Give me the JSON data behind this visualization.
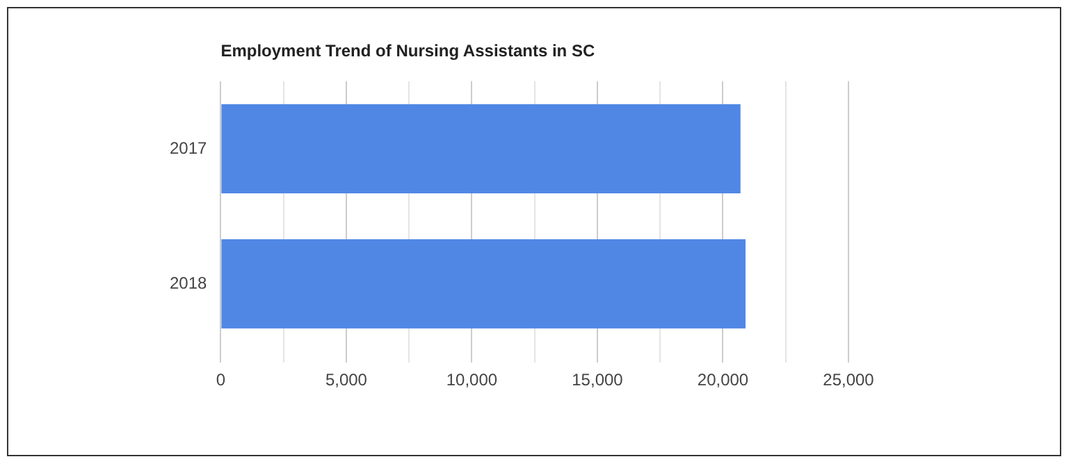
{
  "chart_data": {
    "type": "bar",
    "orientation": "horizontal",
    "title": "Employment Trend of Nursing Assistants in SC",
    "categories": [
      "2017",
      "2018"
    ],
    "values": [
      20700,
      20900
    ],
    "color": "#5087e5",
    "xlim": [
      0,
      25000
    ],
    "xticks": [
      0,
      {
        "value": 2500,
        "label": null
      },
      "5,000",
      {
        "value": 7500,
        "label": null
      },
      {
        "value": 10000,
        "label": "10,000"
      },
      {
        "value": 12500,
        "label": null
      },
      {
        "value": 15000,
        "label": "15,000"
      },
      {
        "value": 17500,
        "label": null
      },
      {
        "value": 20000,
        "label": "20,000"
      },
      {
        "value": 22500,
        "label": null
      },
      {
        "value": 25000,
        "label": "25,000"
      }
    ],
    "grid": "x",
    "legend": false
  }
}
